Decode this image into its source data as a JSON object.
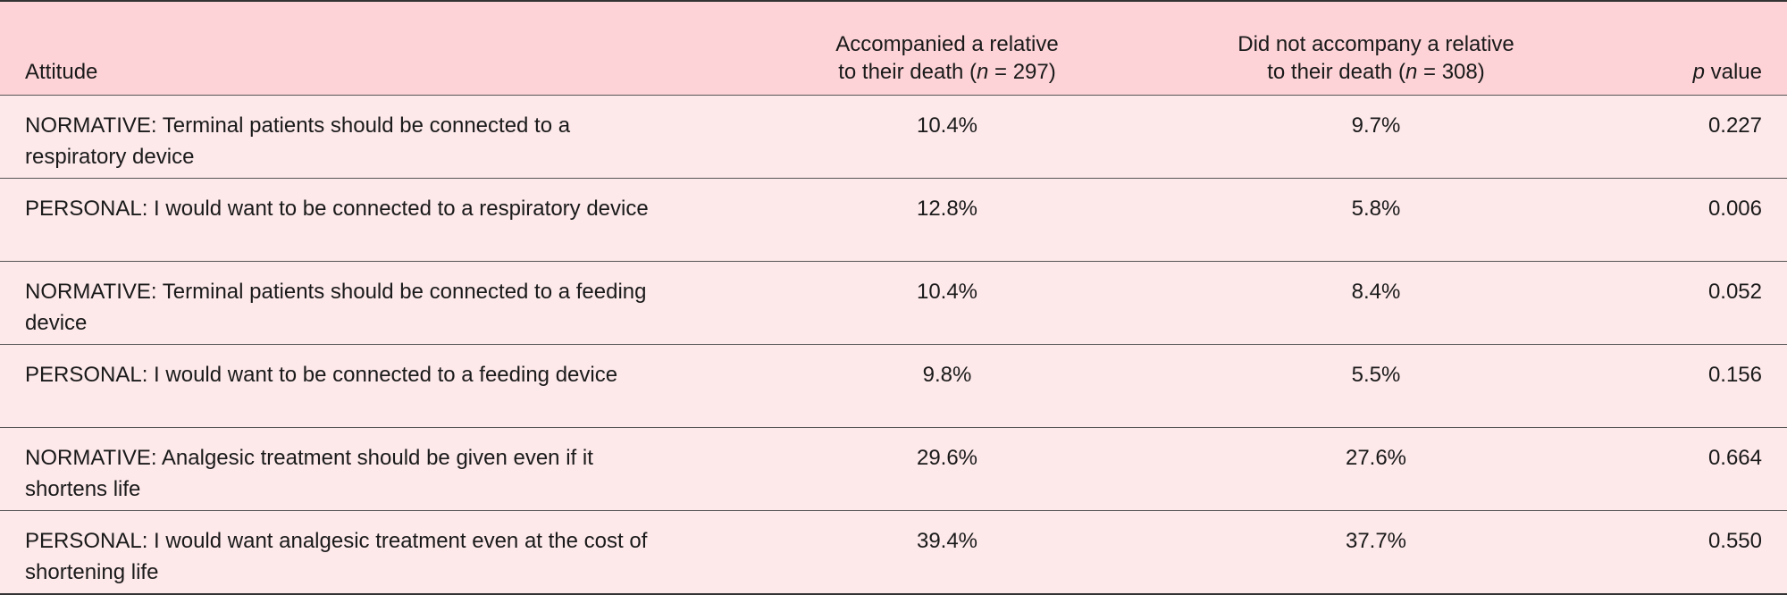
{
  "table": {
    "header": [
      {
        "parts": [
          "Attitude"
        ]
      },
      {
        "parts": [
          "Accompanied a relative",
          "to their death (",
          "n",
          " = 297)"
        ]
      },
      {
        "parts": [
          "Did not accompany a relative",
          "to their death (",
          "n",
          " = 308)"
        ]
      },
      {
        "parts": [
          "p",
          " value"
        ]
      }
    ],
    "rows": [
      [
        "NORMATIVE: Terminal patients should be connected to a respiratory device",
        "10.4%",
        "9.7%",
        "0.227"
      ],
      [
        "PERSONAL: I would want to be connected to a respiratory device",
        "12.8%",
        "5.8%",
        "0.006"
      ],
      [
        "NORMATIVE: Terminal patients should be connected to a feeding device",
        "10.4%",
        "8.4%",
        "0.052"
      ],
      [
        "PERSONAL: I would want to be connected to a feeding device",
        "9.8%",
        "5.5%",
        "0.156"
      ],
      [
        "NORMATIVE: Analgesic treatment should be given even if it shortens life",
        "29.6%",
        "27.6%",
        "0.664"
      ],
      [
        "PERSONAL: I would want analgesic treatment even at the cost of shortening life",
        "39.4%",
        "37.7%",
        "0.550"
      ]
    ]
  }
}
